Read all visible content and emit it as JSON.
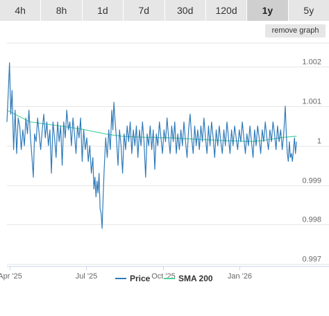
{
  "range_tabs": [
    {
      "label": "4h",
      "active": false
    },
    {
      "label": "8h",
      "active": false
    },
    {
      "label": "1d",
      "active": false
    },
    {
      "label": "7d",
      "active": false
    },
    {
      "label": "30d",
      "active": false
    },
    {
      "label": "120d",
      "active": false
    },
    {
      "label": "1y",
      "active": true
    },
    {
      "label": "5y",
      "active": false
    }
  ],
  "remove_graph_label": "remove graph",
  "chart_data": {
    "type": "line",
    "xlabel": "",
    "ylabel": "",
    "title": "",
    "x_ticks": [
      "Apr '25",
      "Jul '25",
      "Oct '25",
      "Jan '26"
    ],
    "x_tick_months": [
      0,
      3,
      6,
      9
    ],
    "y_ticks": [
      0.997,
      0.998,
      0.999,
      1,
      1.001,
      1.002
    ],
    "y_tick_labels": [
      "0.997",
      "0.998",
      "0.999",
      "1",
      "1.001",
      "1.002"
    ],
    "ylim": [
      0.99695,
      1.0026
    ],
    "x_range_months": [
      -0.1,
      11.35
    ],
    "grid": "horizontal",
    "legend_position": "bottom",
    "colors": {
      "price": "#2f7ab9",
      "sma": "#4fd29e"
    },
    "series": [
      {
        "name": "Price",
        "points": [
          [
            -0.1,
            1.0006
          ],
          [
            -0.05,
            1.0013
          ],
          [
            0.0,
            1.0021
          ],
          [
            0.05,
            1.0008
          ],
          [
            0.1,
            1.0014
          ],
          [
            0.16,
            0.9999
          ],
          [
            0.22,
            1.0009
          ],
          [
            0.28,
            0.9998
          ],
          [
            0.34,
            1.0007
          ],
          [
            0.4,
            1.0005
          ],
          [
            0.46,
            0.9999
          ],
          [
            0.52,
            1.0004
          ],
          [
            0.58,
            1.0
          ],
          [
            0.64,
            1.0007
          ],
          [
            0.7,
            1.0003
          ],
          [
            0.76,
            1.0009
          ],
          [
            0.82,
            1.0002
          ],
          [
            0.88,
            0.9997
          ],
          [
            0.93,
            0.9992
          ],
          [
            0.98,
            1.0003
          ],
          [
            1.04,
            1.0001
          ],
          [
            1.1,
            1.0007
          ],
          [
            1.16,
            1.0003
          ],
          [
            1.22,
            0.9999
          ],
          [
            1.28,
            1.0004
          ],
          [
            1.34,
            1.0008
          ],
          [
            1.4,
            1.0002
          ],
          [
            1.46,
            1.0006
          ],
          [
            1.52,
            1.0
          ],
          [
            1.58,
            1.0004
          ],
          [
            1.64,
            0.9993
          ],
          [
            1.7,
            1.0006
          ],
          [
            1.76,
            1.0002
          ],
          [
            1.82,
            0.9997
          ],
          [
            1.88,
            1.0006
          ],
          [
            1.94,
            1.0001
          ],
          [
            2.0,
            1.0005
          ],
          [
            2.06,
            0.9995
          ],
          [
            2.12,
            1.0006
          ],
          [
            2.18,
            1.0002
          ],
          [
            2.24,
            1.0009
          ],
          [
            2.3,
            1.0004
          ],
          [
            2.36,
            1.0006
          ],
          [
            2.42,
            1.0
          ],
          [
            2.48,
            1.0007
          ],
          [
            2.54,
            1.0003
          ],
          [
            2.6,
            0.9998
          ],
          [
            2.66,
            1.0005
          ],
          [
            2.72,
            1.0002
          ],
          [
            2.78,
            1.0007
          ],
          [
            2.84,
            0.9996
          ],
          [
            2.9,
            1.0004
          ],
          [
            2.96,
            0.9999
          ],
          [
            3.02,
            1.0002
          ],
          [
            3.08,
            0.9996
          ],
          [
            3.14,
            1.0
          ],
          [
            3.2,
            0.9993
          ],
          [
            3.26,
            0.9997
          ],
          [
            3.3,
            0.9989
          ],
          [
            3.34,
            0.9992
          ],
          [
            3.38,
            0.9987
          ],
          [
            3.42,
            0.9991
          ],
          [
            3.46,
            0.9988
          ],
          [
            3.5,
            0.9993
          ],
          [
            3.54,
            0.9984
          ],
          [
            3.58,
            0.9983
          ],
          [
            3.62,
            0.9979
          ],
          [
            3.66,
            0.9987
          ],
          [
            3.7,
            0.9994
          ],
          [
            3.76,
            1.0002
          ],
          [
            3.82,
            0.9997
          ],
          [
            3.88,
            1.0004
          ],
          [
            3.94,
            0.9999
          ],
          [
            4.0,
            1.0009
          ],
          [
            4.04,
            1.0004
          ],
          [
            4.08,
            1.0011
          ],
          [
            4.12,
            1.0007
          ],
          [
            4.18,
            1.0002
          ],
          [
            4.24,
            0.9995
          ],
          [
            4.3,
            1.0004
          ],
          [
            4.36,
            1.0
          ],
          [
            4.42,
            0.9993
          ],
          [
            4.48,
            1.0003
          ],
          [
            4.54,
            0.9999
          ],
          [
            4.6,
            1.0005
          ],
          [
            4.66,
            1.0001
          ],
          [
            4.72,
            1.0006
          ],
          [
            4.78,
            0.9998
          ],
          [
            4.84,
            1.0004
          ],
          [
            4.9,
            1.0
          ],
          [
            4.96,
            1.0005
          ],
          [
            5.02,
            0.9997
          ],
          [
            5.08,
            1.0004
          ],
          [
            5.14,
            1.0
          ],
          [
            5.2,
            1.0006
          ],
          [
            5.26,
            1.0001
          ],
          [
            5.32,
            0.9992
          ],
          [
            5.38,
            1.0003
          ],
          [
            5.44,
            1.0
          ],
          [
            5.5,
            1.0005
          ],
          [
            5.56,
            0.9999
          ],
          [
            5.62,
            1.0004
          ],
          [
            5.68,
            0.9994
          ],
          [
            5.74,
            1.0003
          ],
          [
            5.8,
            1.0
          ],
          [
            5.86,
            1.0006
          ],
          [
            5.92,
            1.0002
          ],
          [
            5.98,
            0.9998
          ],
          [
            6.04,
            1.0004
          ],
          [
            6.1,
            1.0001
          ],
          [
            6.16,
            1.0007
          ],
          [
            6.22,
            1.0002
          ],
          [
            6.28,
            0.9998
          ],
          [
            6.34,
            1.0005
          ],
          [
            6.4,
            1.0001
          ],
          [
            6.46,
            1.0006
          ],
          [
            6.52,
            0.9998
          ],
          [
            6.58,
            1.0003
          ],
          [
            6.64,
            0.9999
          ],
          [
            6.7,
            1.0004
          ],
          [
            6.76,
            1.0
          ],
          [
            6.82,
            1.0006
          ],
          [
            6.88,
            1.0001
          ],
          [
            6.94,
            0.9997
          ],
          [
            7.0,
            1.0004
          ],
          [
            7.06,
            1.0008
          ],
          [
            7.12,
            1.0002
          ],
          [
            7.18,
            0.9998
          ],
          [
            7.24,
            1.0005
          ],
          [
            7.3,
            1.0
          ],
          [
            7.36,
            1.0004
          ],
          [
            7.42,
            0.9999
          ],
          [
            7.48,
            1.0005
          ],
          [
            7.54,
            1.0001
          ],
          [
            7.6,
            1.0007
          ],
          [
            7.66,
            1.0002
          ],
          [
            7.72,
            0.9998
          ],
          [
            7.78,
            1.0005
          ],
          [
            7.84,
            1.0
          ],
          [
            7.9,
            1.0006
          ],
          [
            7.96,
            1.0002
          ],
          [
            8.02,
            0.9997
          ],
          [
            8.08,
            1.0004
          ],
          [
            8.14,
            1.0
          ],
          [
            8.2,
            1.0005
          ],
          [
            8.26,
            1.0001
          ],
          [
            8.32,
            0.9998
          ],
          [
            8.38,
            1.0004
          ],
          [
            8.44,
            1.0
          ],
          [
            8.5,
            1.0006
          ],
          [
            8.56,
            1.0002
          ],
          [
            8.62,
            0.9998
          ],
          [
            8.68,
            1.0004
          ],
          [
            8.74,
            1.0
          ],
          [
            8.8,
            1.0005
          ],
          [
            8.86,
            1.0002
          ],
          [
            8.92,
            0.9999
          ],
          [
            8.98,
            1.0004
          ],
          [
            9.04,
            1.0001
          ],
          [
            9.1,
            1.0006
          ],
          [
            9.16,
            1.0002
          ],
          [
            9.22,
            0.9998
          ],
          [
            9.28,
            1.0003
          ],
          [
            9.34,
            1.0
          ],
          [
            9.4,
            1.0005
          ],
          [
            9.46,
            1.0001
          ],
          [
            9.52,
            0.9997
          ],
          [
            9.58,
            1.0004
          ],
          [
            9.64,
            1.0
          ],
          [
            9.7,
            1.0005
          ],
          [
            9.76,
            1.0002
          ],
          [
            9.82,
            0.9998
          ],
          [
            9.88,
            1.0004
          ],
          [
            9.94,
            1.0001
          ],
          [
            10.0,
            1.0006
          ],
          [
            10.06,
            1.0002
          ],
          [
            10.12,
            0.9999
          ],
          [
            10.18,
            1.0004
          ],
          [
            10.24,
            1.0001
          ],
          [
            10.3,
            1.0006
          ],
          [
            10.36,
            1.0003
          ],
          [
            10.42,
            0.9999
          ],
          [
            10.48,
            1.0005
          ],
          [
            10.54,
            1.0001
          ],
          [
            10.6,
            1.0004
          ],
          [
            10.66,
            0.9999
          ],
          [
            10.72,
            1.0003
          ],
          [
            10.78,
            1.001
          ],
          [
            10.82,
            1.0003
          ],
          [
            10.86,
            0.9998
          ],
          [
            10.9,
            0.9996
          ],
          [
            10.94,
            1.0001
          ],
          [
            10.98,
            0.9997
          ],
          [
            11.02,
            0.9998
          ],
          [
            11.06,
            0.9996
          ],
          [
            11.1,
            0.9999
          ],
          [
            11.14,
            1.0002
          ],
          [
            11.18,
            0.9998
          ],
          [
            11.22,
            1.0001
          ]
        ]
      },
      {
        "name": "SMA 200",
        "points": [
          [
            -0.1,
            1.0009
          ],
          [
            0.2,
            1.0008
          ],
          [
            0.5,
            1.0007
          ],
          [
            0.8,
            1.0006
          ],
          [
            1.1,
            1.00058
          ],
          [
            1.4,
            1.00055
          ],
          [
            1.7,
            1.00052
          ],
          [
            2.0,
            1.0005
          ],
          [
            2.3,
            1.00047
          ],
          [
            2.6,
            1.00044
          ],
          [
            2.9,
            1.00041
          ],
          [
            3.2,
            1.00037
          ],
          [
            3.5,
            1.00033
          ],
          [
            3.8,
            1.00029
          ],
          [
            4.1,
            1.00026
          ],
          [
            4.4,
            1.00024
          ],
          [
            4.7,
            1.00023
          ],
          [
            5.0,
            1.00022
          ],
          [
            5.3,
            1.00021
          ],
          [
            5.6,
            1.00021
          ],
          [
            5.9,
            1.0002
          ],
          [
            6.2,
            1.0002
          ],
          [
            6.5,
            1.00019
          ],
          [
            6.8,
            1.00018
          ],
          [
            7.1,
            1.00017
          ],
          [
            7.4,
            1.00016
          ],
          [
            7.7,
            1.00015
          ],
          [
            8.0,
            1.00014
          ],
          [
            8.3,
            1.00013
          ],
          [
            8.6,
            1.00012
          ],
          [
            8.9,
            1.00012
          ],
          [
            9.2,
            1.00011
          ],
          [
            9.5,
            1.00011
          ],
          [
            9.8,
            1.00012
          ],
          [
            10.1,
            1.00015
          ],
          [
            10.4,
            1.00018
          ],
          [
            10.7,
            1.00021
          ],
          [
            11.0,
            1.00023
          ],
          [
            11.22,
            1.00024
          ]
        ]
      }
    ]
  }
}
